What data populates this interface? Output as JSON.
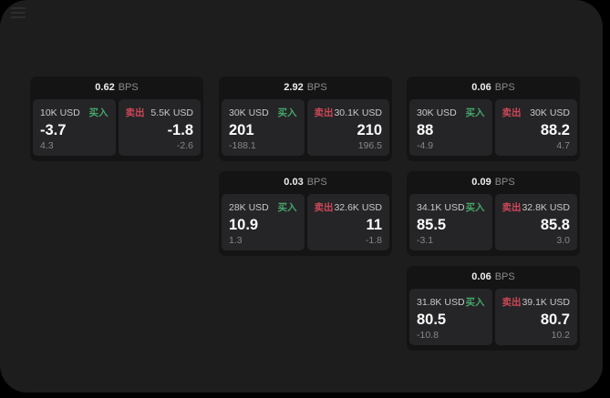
{
  "labels": {
    "buy": "买入",
    "sell": "卖出",
    "bps": "BPS"
  },
  "colors": {
    "background": "#000000",
    "window_bg": "#1d1d1e",
    "card_bg": "#141415",
    "panel_bg": "#252527",
    "buy_green": "#46a56a",
    "sell_red": "#cc4757",
    "value_white": "#fbfbfb",
    "muted_gray": "#878787"
  },
  "cards": [
    {
      "bps": "0.62",
      "buy": {
        "amount": "10K USD",
        "value": "-3.7",
        "delta": "4.3"
      },
      "sell": {
        "amount": "5.5K USD",
        "value": "-1.8",
        "delta": "-2.6"
      }
    },
    {
      "bps": "2.92",
      "buy": {
        "amount": "30K USD",
        "value": "201",
        "delta": "-188.1"
      },
      "sell": {
        "amount": "30.1K USD",
        "value": "210",
        "delta": "196.5"
      }
    },
    {
      "bps": "0.06",
      "buy": {
        "amount": "30K USD",
        "value": "88",
        "delta": "-4.9"
      },
      "sell": {
        "amount": "30K USD",
        "value": "88.2",
        "delta": "4.7"
      }
    },
    {
      "bps": "0.03",
      "buy": {
        "amount": "28K USD",
        "value": "10.9",
        "delta": "1.3"
      },
      "sell": {
        "amount": "32.6K USD",
        "value": "11",
        "delta": "-1.8"
      }
    },
    {
      "bps": "0.09",
      "buy": {
        "amount": "34.1K USD",
        "value": "85.5",
        "delta": "-3.1"
      },
      "sell": {
        "amount": "32.8K USD",
        "value": "85.8",
        "delta": "3.0"
      }
    },
    {
      "bps": "0.06",
      "buy": {
        "amount": "31.8K USD",
        "value": "80.5",
        "delta": "-10.8"
      },
      "sell": {
        "amount": "39.1K USD",
        "value": "80.7",
        "delta": "10.2"
      }
    }
  ]
}
